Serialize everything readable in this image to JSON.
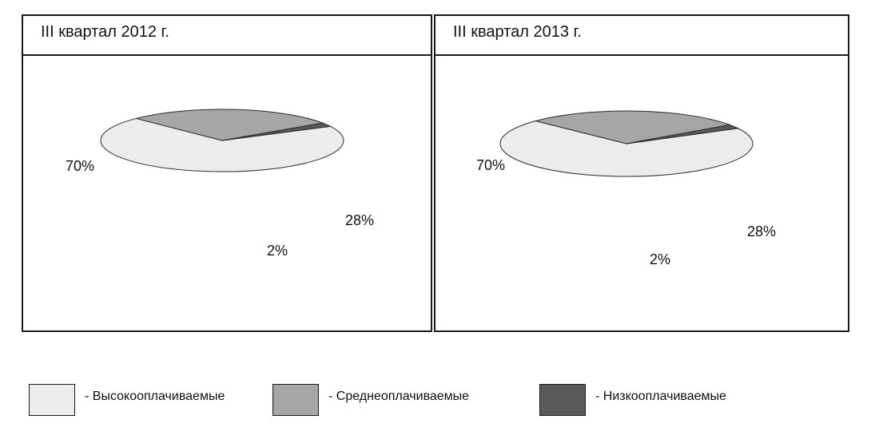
{
  "colors": {
    "high_top": "#ececec",
    "mid_top": "#a6a6a6",
    "low_top": "#595959"
  },
  "chart_data": [
    {
      "type": "pie",
      "title": "III квартал 2012 г.",
      "slices": [
        {
          "label": "Высокооплачиваемые",
          "value": 70,
          "display": "70%"
        },
        {
          "label": "Среднеоплачиваемые",
          "value": 28,
          "display": "28%"
        },
        {
          "label": "Низкооплачиваемые",
          "value": 2,
          "display": "2%"
        }
      ],
      "legend_position": "bottom"
    },
    {
      "type": "pie",
      "title": "III квартал 2013 г.",
      "slices": [
        {
          "label": "Высокооплачиваемые",
          "value": 70,
          "display": "70%"
        },
        {
          "label": "Среднеоплачиваемые",
          "value": 28,
          "display": "28%"
        },
        {
          "label": "Низкооплачиваемые",
          "value": 2,
          "display": "2%"
        }
      ],
      "legend_position": "bottom"
    }
  ],
  "legend": [
    {
      "text": "- Высокооплачиваемые"
    },
    {
      "text": "-  Среднеоплачиваемые"
    },
    {
      "text": "-  Низкооплачиваемые"
    }
  ]
}
